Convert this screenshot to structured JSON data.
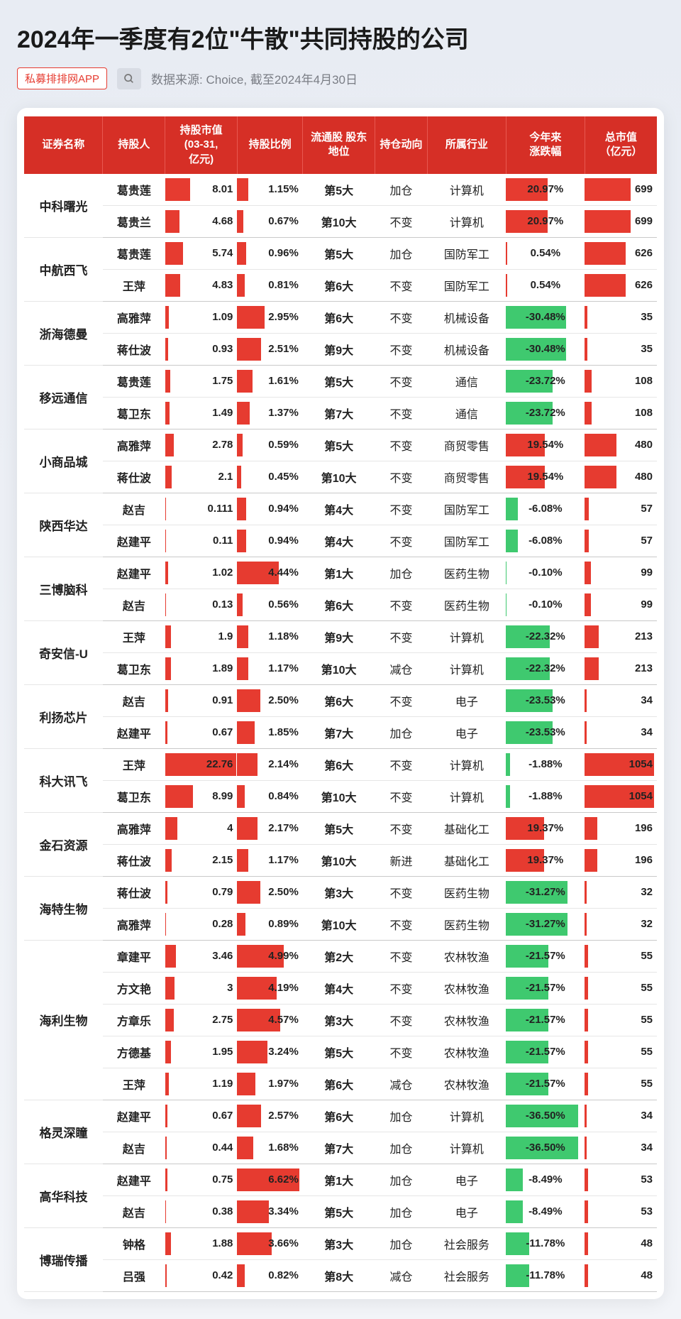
{
  "title": "2024年一季度有2位\"牛散\"共同持股的公司",
  "app_badge": "私募排排网APP",
  "source": "数据来源: Choice, 截至2024年4月30日",
  "colors": {
    "header_bg": "#d62f26",
    "bar_red": "#e63b30",
    "bar_green": "#3fc96f",
    "text": "#222222",
    "border": "#e6e6e6"
  },
  "columns": [
    "证券名称",
    "持股人",
    "持股市值\n(03-31,\n亿元)",
    "持股比例",
    "流通股 股东地位",
    "持仓动向",
    "所属行业",
    "今年来\n涨跌幅",
    "总市值\n（亿元）"
  ],
  "scales": {
    "mv_max": 23,
    "ratio_max": 7,
    "chg_max": 40,
    "cap_max": 1100
  },
  "groups": [
    {
      "sec": "中科曙光",
      "rows": [
        {
          "holder": "葛贵莲",
          "mv": 8.01,
          "ratio": 1.15,
          "rank": "第5大",
          "dir": "加仓",
          "ind": "计算机",
          "chg": 20.97,
          "cap": 699
        },
        {
          "holder": "葛贵兰",
          "mv": 4.68,
          "ratio": 0.67,
          "rank": "第10大",
          "dir": "不变",
          "ind": "计算机",
          "chg": 20.97,
          "cap": 699
        }
      ]
    },
    {
      "sec": "中航西飞",
      "rows": [
        {
          "holder": "葛贵莲",
          "mv": 5.74,
          "ratio": 0.96,
          "rank": "第5大",
          "dir": "加仓",
          "ind": "国防军工",
          "chg": 0.54,
          "cap": 626
        },
        {
          "holder": "王萍",
          "mv": 4.83,
          "ratio": 0.81,
          "rank": "第6大",
          "dir": "不变",
          "ind": "国防军工",
          "chg": 0.54,
          "cap": 626
        }
      ]
    },
    {
      "sec": "浙海德曼",
      "rows": [
        {
          "holder": "高雅萍",
          "mv": 1.09,
          "ratio": 2.95,
          "rank": "第6大",
          "dir": "不变",
          "ind": "机械设备",
          "chg": -30.48,
          "cap": 35
        },
        {
          "holder": "蒋仕波",
          "mv": 0.93,
          "ratio": 2.51,
          "rank": "第9大",
          "dir": "不变",
          "ind": "机械设备",
          "chg": -30.48,
          "cap": 35
        }
      ]
    },
    {
      "sec": "移远通信",
      "rows": [
        {
          "holder": "葛贵莲",
          "mv": 1.75,
          "ratio": 1.61,
          "rank": "第5大",
          "dir": "不变",
          "ind": "通信",
          "chg": -23.72,
          "cap": 108
        },
        {
          "holder": "葛卫东",
          "mv": 1.49,
          "ratio": 1.37,
          "rank": "第7大",
          "dir": "不变",
          "ind": "通信",
          "chg": -23.72,
          "cap": 108
        }
      ]
    },
    {
      "sec": "小商品城",
      "rows": [
        {
          "holder": "高雅萍",
          "mv": 2.78,
          "ratio": 0.59,
          "rank": "第5大",
          "dir": "不变",
          "ind": "商贸零售",
          "chg": 19.54,
          "cap": 480
        },
        {
          "holder": "蒋仕波",
          "mv": 2.1,
          "ratio": 0.45,
          "rank": "第10大",
          "dir": "不变",
          "ind": "商贸零售",
          "chg": 19.54,
          "cap": 480
        }
      ]
    },
    {
      "sec": "陕西华达",
      "rows": [
        {
          "holder": "赵吉",
          "mv": 0.111,
          "ratio": 0.94,
          "rank": "第4大",
          "dir": "不变",
          "ind": "国防军工",
          "chg": -6.08,
          "cap": 57
        },
        {
          "holder": "赵建平",
          "mv": 0.11,
          "ratio": 0.94,
          "rank": "第4大",
          "dir": "不变",
          "ind": "国防军工",
          "chg": -6.08,
          "cap": 57
        }
      ]
    },
    {
      "sec": "三博脑科",
      "rows": [
        {
          "holder": "赵建平",
          "mv": 1.02,
          "ratio": 4.44,
          "rank": "第1大",
          "dir": "加仓",
          "ind": "医药生物",
          "chg": -0.1,
          "cap": 99
        },
        {
          "holder": "赵吉",
          "mv": 0.13,
          "ratio": 0.56,
          "rank": "第6大",
          "dir": "不变",
          "ind": "医药生物",
          "chg": -0.1,
          "cap": 99
        }
      ]
    },
    {
      "sec": "奇安信-U",
      "rows": [
        {
          "holder": "王萍",
          "mv": 1.9,
          "ratio": 1.18,
          "rank": "第9大",
          "dir": "不变",
          "ind": "计算机",
          "chg": -22.32,
          "cap": 213
        },
        {
          "holder": "葛卫东",
          "mv": 1.89,
          "ratio": 1.17,
          "rank": "第10大",
          "dir": "减仓",
          "ind": "计算机",
          "chg": -22.32,
          "cap": 213
        }
      ]
    },
    {
      "sec": "利扬芯片",
      "rows": [
        {
          "holder": "赵吉",
          "mv": 0.91,
          "ratio": 2.5,
          "rank": "第6大",
          "dir": "不变",
          "ind": "电子",
          "chg": -23.53,
          "cap": 34
        },
        {
          "holder": "赵建平",
          "mv": 0.67,
          "ratio": 1.85,
          "rank": "第7大",
          "dir": "加仓",
          "ind": "电子",
          "chg": -23.53,
          "cap": 34
        }
      ]
    },
    {
      "sec": "科大讯飞",
      "rows": [
        {
          "holder": "王萍",
          "mv": 22.76,
          "ratio": 2.14,
          "rank": "第6大",
          "dir": "不变",
          "ind": "计算机",
          "chg": -1.88,
          "cap": 1054
        },
        {
          "holder": "葛卫东",
          "mv": 8.99,
          "ratio": 0.84,
          "rank": "第10大",
          "dir": "不变",
          "ind": "计算机",
          "chg": -1.88,
          "cap": 1054
        }
      ]
    },
    {
      "sec": "金石资源",
      "rows": [
        {
          "holder": "高雅萍",
          "mv": 4,
          "ratio": 2.17,
          "rank": "第5大",
          "dir": "不变",
          "ind": "基础化工",
          "chg": 19.37,
          "cap": 196
        },
        {
          "holder": "蒋仕波",
          "mv": 2.15,
          "ratio": 1.17,
          "rank": "第10大",
          "dir": "新进",
          "ind": "基础化工",
          "chg": 19.37,
          "cap": 196
        }
      ]
    },
    {
      "sec": "海特生物",
      "rows": [
        {
          "holder": "蒋仕波",
          "mv": 0.79,
          "ratio": 2.5,
          "rank": "第3大",
          "dir": "不变",
          "ind": "医药生物",
          "chg": -31.27,
          "cap": 32
        },
        {
          "holder": "高雅萍",
          "mv": 0.28,
          "ratio": 0.89,
          "rank": "第10大",
          "dir": "不变",
          "ind": "医药生物",
          "chg": -31.27,
          "cap": 32
        }
      ]
    },
    {
      "sec": "海利生物",
      "rows": [
        {
          "holder": "章建平",
          "mv": 3.46,
          "ratio": 4.99,
          "rank": "第2大",
          "dir": "不变",
          "ind": "农林牧渔",
          "chg": -21.57,
          "cap": 55
        },
        {
          "holder": "方文艳",
          "mv": 3,
          "ratio": 4.19,
          "rank": "第4大",
          "dir": "不变",
          "ind": "农林牧渔",
          "chg": -21.57,
          "cap": 55
        },
        {
          "holder": "方章乐",
          "mv": 2.75,
          "ratio": 4.57,
          "rank": "第3大",
          "dir": "不变",
          "ind": "农林牧渔",
          "chg": -21.57,
          "cap": 55
        },
        {
          "holder": "方德基",
          "mv": 1.95,
          "ratio": 3.24,
          "rank": "第5大",
          "dir": "不变",
          "ind": "农林牧渔",
          "chg": -21.57,
          "cap": 55
        },
        {
          "holder": "王萍",
          "mv": 1.19,
          "ratio": 1.97,
          "rank": "第6大",
          "dir": "减仓",
          "ind": "农林牧渔",
          "chg": -21.57,
          "cap": 55
        }
      ]
    },
    {
      "sec": "格灵深瞳",
      "rows": [
        {
          "holder": "赵建平",
          "mv": 0.67,
          "ratio": 2.57,
          "rank": "第6大",
          "dir": "加仓",
          "ind": "计算机",
          "chg": -36.5,
          "cap": 34
        },
        {
          "holder": "赵吉",
          "mv": 0.44,
          "ratio": 1.68,
          "rank": "第7大",
          "dir": "加仓",
          "ind": "计算机",
          "chg": -36.5,
          "cap": 34
        }
      ]
    },
    {
      "sec": "高华科技",
      "rows": [
        {
          "holder": "赵建平",
          "mv": 0.75,
          "ratio": 6.62,
          "rank": "第1大",
          "dir": "加仓",
          "ind": "电子",
          "chg": -8.49,
          "cap": 53
        },
        {
          "holder": "赵吉",
          "mv": 0.38,
          "ratio": 3.34,
          "rank": "第5大",
          "dir": "加仓",
          "ind": "电子",
          "chg": -8.49,
          "cap": 53
        }
      ]
    },
    {
      "sec": "博瑞传播",
      "rows": [
        {
          "holder": "钟格",
          "mv": 1.88,
          "ratio": 3.66,
          "rank": "第3大",
          "dir": "加仓",
          "ind": "社会服务",
          "chg": -11.78,
          "cap": 48
        },
        {
          "holder": "吕强",
          "mv": 0.42,
          "ratio": 0.82,
          "rank": "第8大",
          "dir": "减仓",
          "ind": "社会服务",
          "chg": -11.78,
          "cap": 48
        }
      ]
    }
  ]
}
